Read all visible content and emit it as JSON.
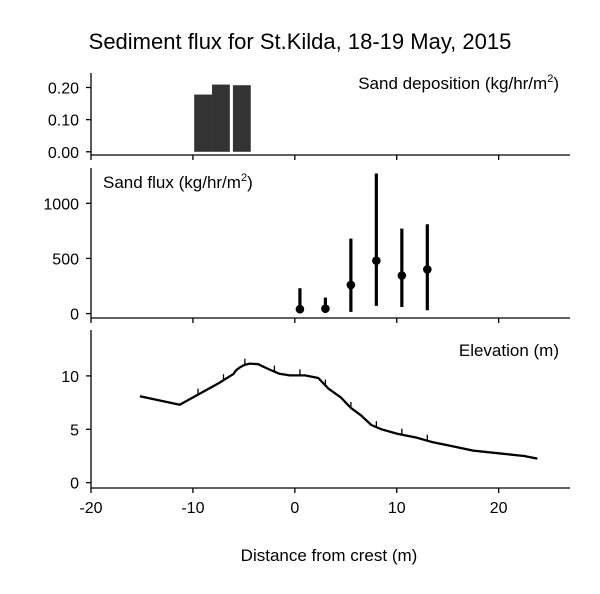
{
  "chart_data": {
    "title": "Sediment flux for St.Kilda, 18-19 May, 2015",
    "xlabel": "Distance from crest (m)",
    "xlim": [
      -20,
      27
    ],
    "xticks": [
      -20,
      -10,
      0,
      10,
      20
    ],
    "panels": [
      {
        "type": "bar",
        "label": "Sand deposition (kg/hr/m",
        "label_sup": "2",
        "label_tail": ")",
        "ylim": [
          -0.01,
          0.245
        ],
        "yticks": [
          "0.00",
          "0.10",
          "0.20"
        ],
        "ytick_values": [
          0.0,
          0.1,
          0.2
        ],
        "bar_color": "#333333",
        "x": [
          -9.0,
          -7.25,
          -5.2
        ],
        "values": [
          0.178,
          0.209,
          0.207
        ],
        "bar_width": 1.75
      },
      {
        "type": "pointrange",
        "label": "Sand flux (kg/hr/m",
        "label_sup": "2",
        "label_tail": ")",
        "ylim": [
          -40,
          1320
        ],
        "yticks": [
          "0",
          "500",
          "1000"
        ],
        "ytick_values": [
          0,
          500,
          1000
        ],
        "points": [
          {
            "x": 0.5,
            "y": 40,
            "low": 5,
            "high": 230
          },
          {
            "x": 3.0,
            "y": 45,
            "low": 5,
            "high": 145
          },
          {
            "x": 5.5,
            "y": 260,
            "low": 15,
            "high": 680
          },
          {
            "x": 8.0,
            "y": 480,
            "low": 70,
            "high": 1270
          },
          {
            "x": 10.5,
            "y": 345,
            "low": 60,
            "high": 770
          },
          {
            "x": 13.0,
            "y": 400,
            "low": 30,
            "high": 810
          }
        ]
      },
      {
        "type": "line",
        "label": "Elevation (m)",
        "ylim": [
          -0.5,
          14.3
        ],
        "yticks": [
          "0",
          "5",
          "10"
        ],
        "ytick_values": [
          0,
          5,
          10
        ],
        "line": {
          "x": [
            -15.2,
            -11.3,
            -7.5,
            -6.0,
            -5.8,
            -5.4,
            -4.9,
            -4.4,
            -3.6,
            -2.5,
            -1.5,
            -0.5,
            1.0,
            2.3,
            3.3,
            4.5,
            5.5,
            6.5,
            7.5,
            8.5,
            10.0,
            12.0,
            13.5,
            15.0,
            17.5,
            20.0,
            22.5,
            23.8
          ],
          "y": [
            8.1,
            7.3,
            9.3,
            10.2,
            10.5,
            10.8,
            11.05,
            11.15,
            11.1,
            10.6,
            10.2,
            10.05,
            10.05,
            9.8,
            8.8,
            8.0,
            7.0,
            6.3,
            5.4,
            5.0,
            4.6,
            4.2,
            3.8,
            3.5,
            3.0,
            2.75,
            2.5,
            2.25
          ]
        },
        "markers_x": [
          -9.5,
          -7.0,
          -4.9,
          -2.0,
          0.5,
          3.0,
          5.5,
          8.0,
          10.5,
          13.0
        ]
      }
    ]
  }
}
